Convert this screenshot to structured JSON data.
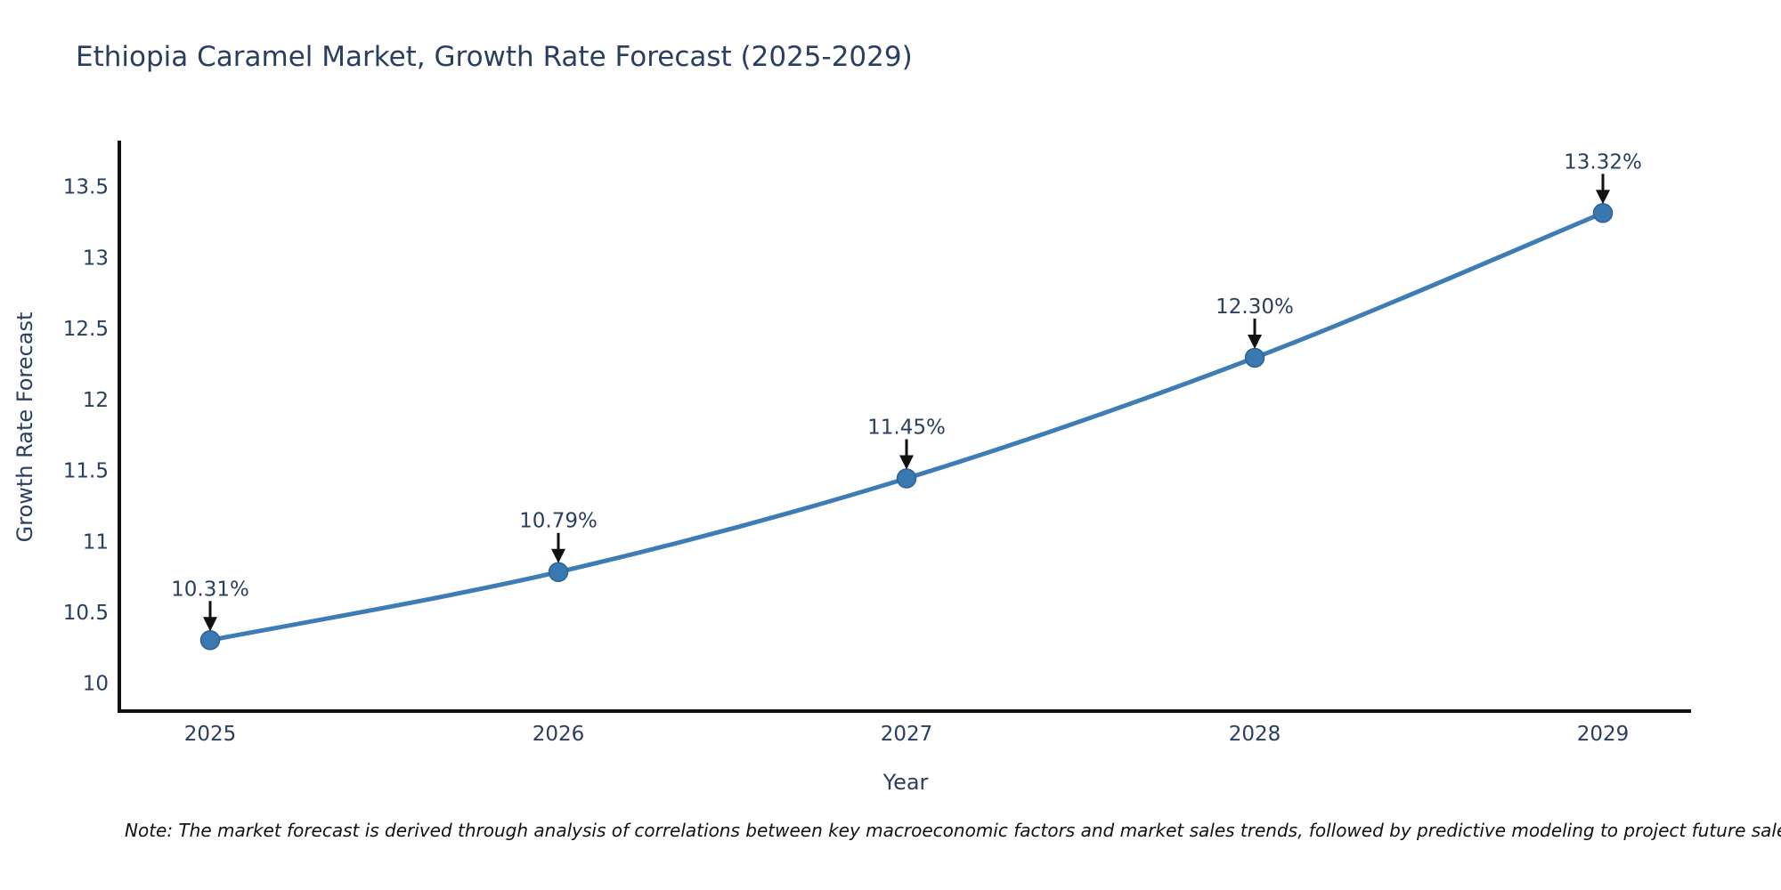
{
  "note": "Note: The market forecast is derived through analysis of correlations between key macroeconomic factors and market sales trends, followed by predictive modeling to project future sales",
  "chart_data": {
    "type": "line",
    "title": "Ethiopia Caramel Market, Growth Rate Forecast (2025-2029)",
    "xlabel": "Year",
    "ylabel": "Growth Rate Forecast",
    "x": [
      2025,
      2026,
      2027,
      2028,
      2029
    ],
    "series": [
      {
        "name": "Growth Rate Forecast",
        "values": [
          10.31,
          10.79,
          11.45,
          12.3,
          13.32
        ]
      }
    ],
    "point_labels": [
      "10.31%",
      "10.79%",
      "11.45%",
      "12.30%",
      "13.32%"
    ],
    "xticks": [
      "2025",
      "2026",
      "2027",
      "2028",
      "2029"
    ],
    "yticks": [
      10,
      10.5,
      11,
      11.5,
      12,
      12.5,
      13,
      13.5
    ],
    "ylim": [
      9.81,
      13.83
    ],
    "grid": false,
    "legend": "none",
    "line_shape": "spline",
    "colors": {
      "line": "#3e7cb5",
      "marker": "#3a78b2",
      "marker_edge": "#2e6398",
      "arrow": "#111111",
      "axis": "#111111",
      "tick_text": "#2a3f5f",
      "title_text": "#2a3f5f",
      "note_text": "#111111",
      "background": "#ffffff"
    }
  }
}
